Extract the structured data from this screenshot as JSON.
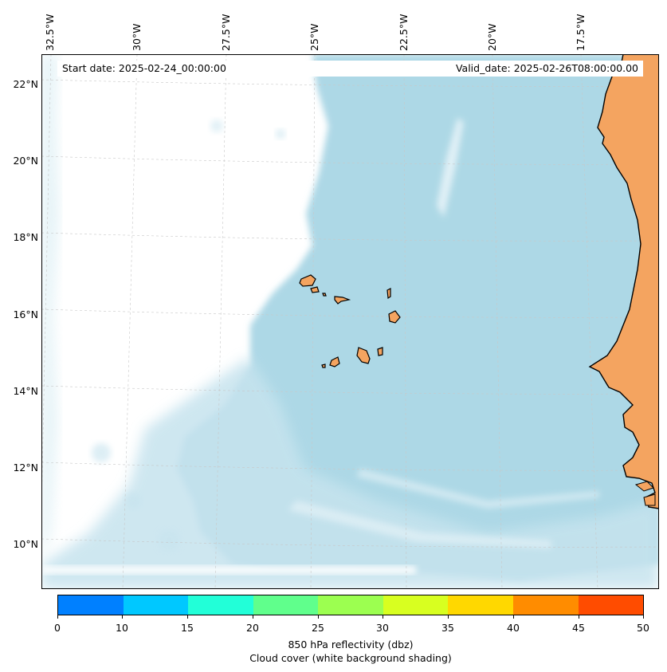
{
  "map": {
    "start_date": "Start date: 2025-02-24_00:00:00",
    "valid_date": "Valid_date: 2025-02-26T08:00:00.00",
    "longitude_labels": [
      "32.5°W",
      "30°W",
      "27.5°W",
      "25°W",
      "22.5°W",
      "20°W",
      "17.5°W"
    ],
    "latitude_labels": [
      "22°N",
      "20°N",
      "18°N",
      "16°N",
      "14°N",
      "12°N",
      "10°N"
    ],
    "region": "Cape Verde islands and West African coast",
    "colors": {
      "land": "#f4a460",
      "cloud": "#add8e6",
      "coastline": "#000000",
      "gridline": "#c8c8c8"
    }
  },
  "colorbar": {
    "ticks": [
      "0",
      "10",
      "15",
      "20",
      "25",
      "30",
      "35",
      "40",
      "45",
      "50"
    ],
    "colors": [
      "#0080ff",
      "#00c8ff",
      "#22ffd8",
      "#60ff8c",
      "#9cff50",
      "#d8ff20",
      "#ffd800",
      "#ff8c00",
      "#ff4c00"
    ],
    "label_line1": "850 hPa reflectivity (dbz)",
    "label_line2": "Cloud cover (white background shading)"
  }
}
